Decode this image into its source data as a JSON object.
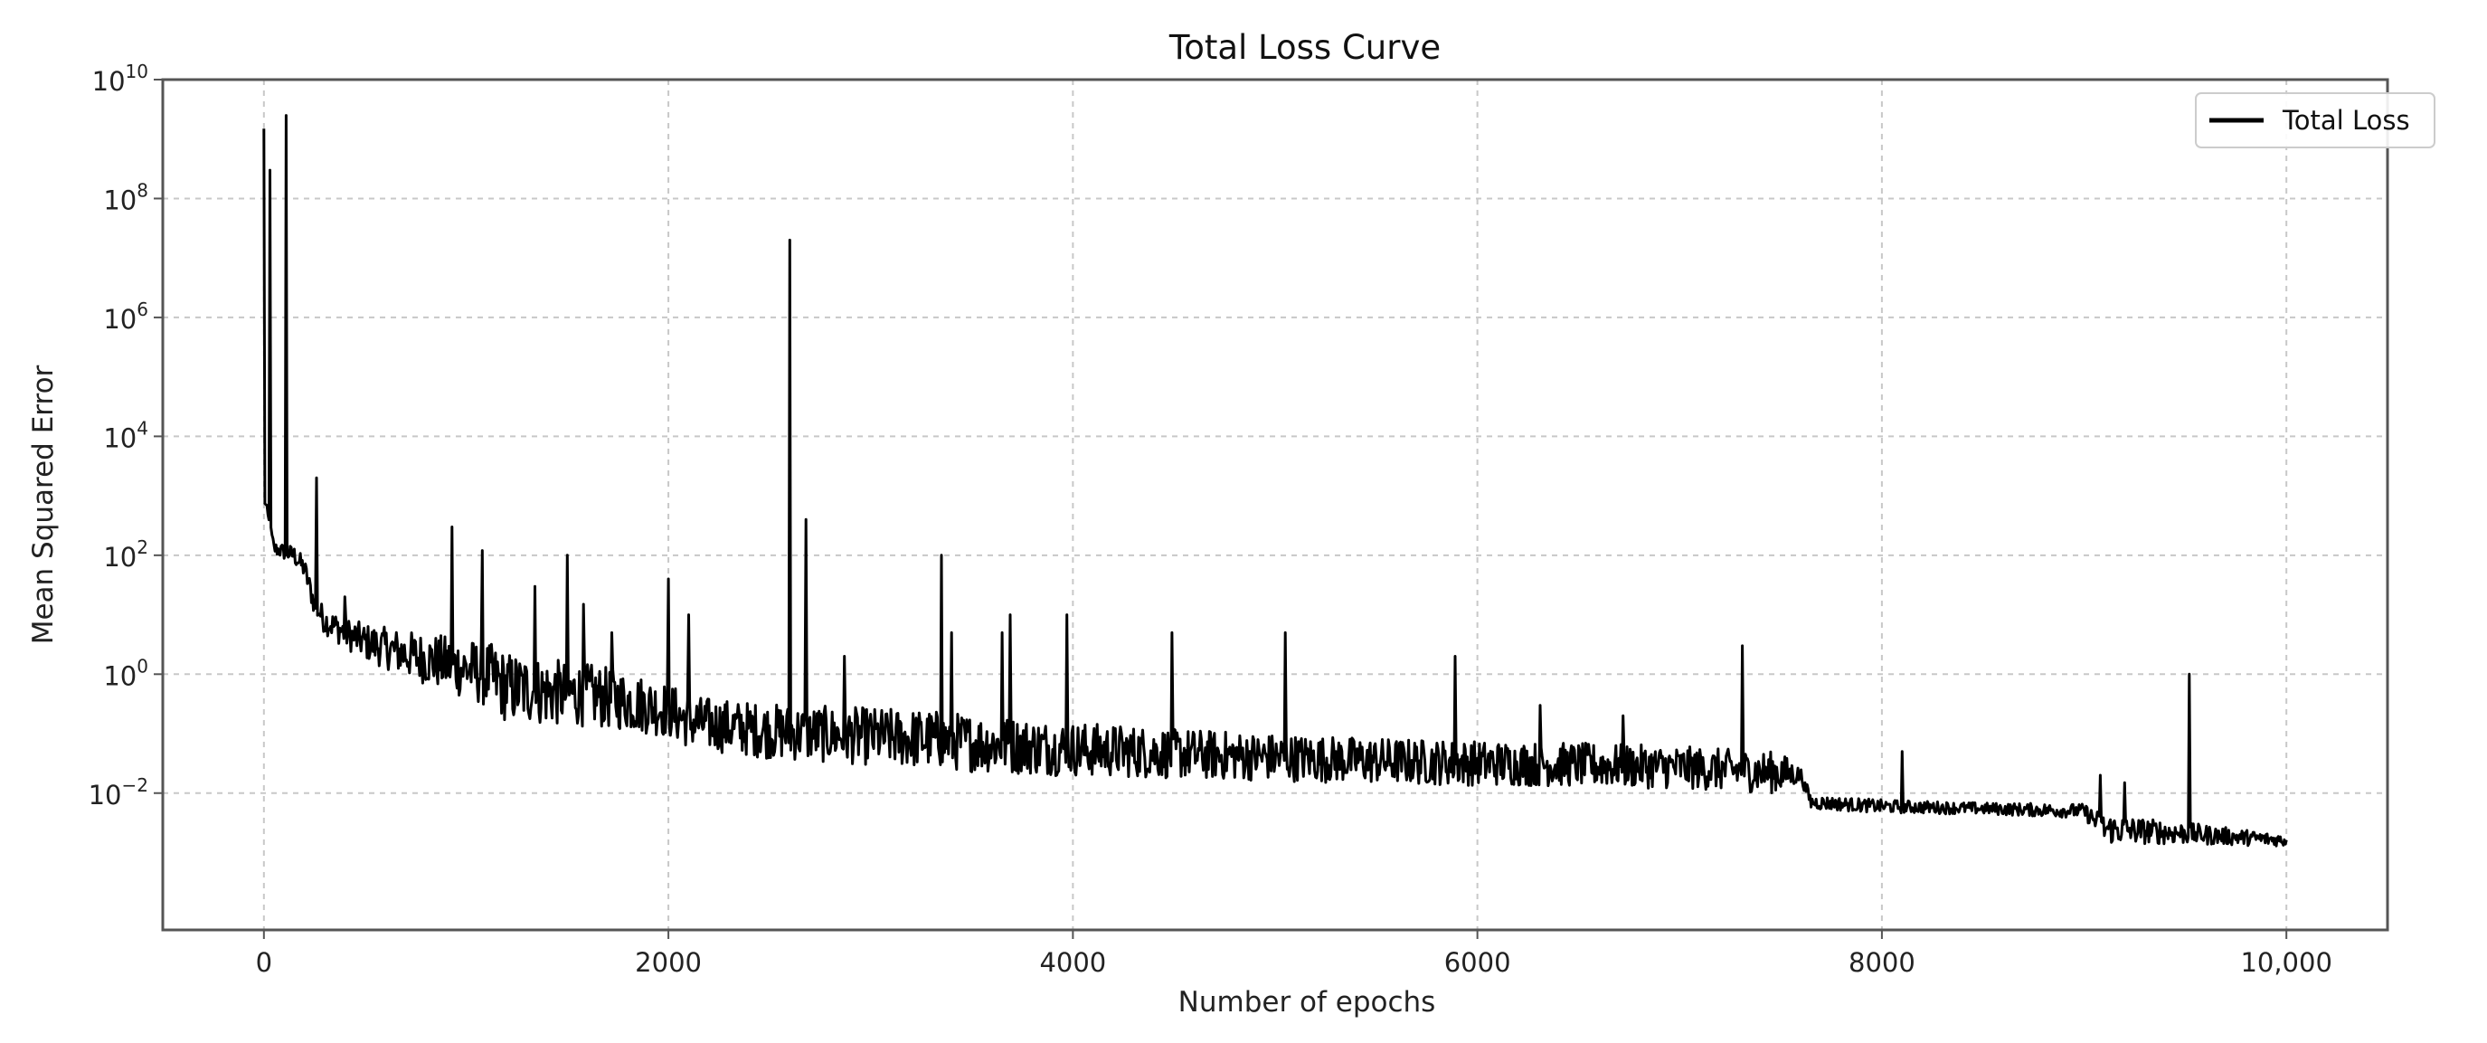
{
  "colors": {
    "line": "#000000",
    "grid": "#c8c8c8",
    "axes": "#555555",
    "background": "#ffffff"
  },
  "chart_data": {
    "type": "line",
    "title": "Total Loss Curve",
    "xlabel": "Number of epochs",
    "ylabel": "Mean Squared Error",
    "xlim": [
      -500,
      10500
    ],
    "ylim": [
      5e-05,
      10000000000
    ],
    "yscale": "log",
    "grid": true,
    "legend_position": "top-right",
    "xticks": [
      0,
      2000,
      4000,
      6000,
      8000,
      10000
    ],
    "xtick_labels": [
      "0",
      "2000",
      "4000",
      "6000",
      "8000",
      "10,000"
    ],
    "yticks": [
      {
        "value": 0.01,
        "base": "10",
        "exp": "−2"
      },
      {
        "value": 1,
        "base": "10",
        "exp": "0"
      },
      {
        "value": 100,
        "base": "10",
        "exp": "2"
      },
      {
        "value": 10000,
        "base": "10",
        "exp": "4"
      },
      {
        "value": 1000000,
        "base": "10",
        "exp": "6"
      },
      {
        "value": 100000000,
        "base": "10",
        "exp": "8"
      },
      {
        "value": 10000000000,
        "base": "10",
        "exp": "10"
      }
    ],
    "series": [
      {
        "name": "Total Loss",
        "color": "#000000",
        "trend": [
          [
            0,
            1000
          ],
          [
            50,
            130
          ],
          [
            150,
            100
          ],
          [
            200,
            60
          ],
          [
            250,
            15
          ],
          [
            300,
            8
          ],
          [
            400,
            5
          ],
          [
            500,
            3.5
          ],
          [
            700,
            2.2
          ],
          [
            900,
            1.5
          ],
          [
            1100,
            1.0
          ],
          [
            1200,
            0.6
          ],
          [
            1400,
            0.5
          ],
          [
            1600,
            0.45
          ],
          [
            1800,
            0.35
          ],
          [
            2000,
            0.25
          ],
          [
            2100,
            0.16
          ],
          [
            2300,
            0.13
          ],
          [
            2500,
            0.11
          ],
          [
            2700,
            0.1
          ],
          [
            3000,
            0.09
          ],
          [
            3300,
            0.08
          ],
          [
            3500,
            0.07
          ],
          [
            3800,
            0.06
          ],
          [
            4000,
            0.055
          ],
          [
            4300,
            0.05
          ],
          [
            4600,
            0.045
          ],
          [
            5000,
            0.04
          ],
          [
            5500,
            0.035
          ],
          [
            6000,
            0.032
          ],
          [
            6500,
            0.03
          ],
          [
            7000,
            0.027
          ],
          [
            7500,
            0.022
          ],
          [
            7600,
            0.02
          ],
          [
            7650,
            0.007
          ],
          [
            8000,
            0.006
          ],
          [
            8500,
            0.0055
          ],
          [
            9000,
            0.005
          ],
          [
            9100,
            0.0025
          ],
          [
            9500,
            0.0021
          ],
          [
            10000,
            0.0016
          ]
        ],
        "noise": [
          [
            0,
            0.1
          ],
          [
            1200,
            0.6
          ],
          [
            2100,
            0.45
          ],
          [
            3300,
            0.5
          ],
          [
            5000,
            0.4
          ],
          [
            7500,
            0.35
          ],
          [
            7600,
            0.12
          ],
          [
            8500,
            0.1
          ],
          [
            9000,
            0.12
          ],
          [
            9100,
            0.25
          ],
          [
            10000,
            0.1
          ]
        ],
        "spikes": [
          [
            0,
            1500000000
          ],
          [
            30,
            300000000
          ],
          [
            110,
            2500000000
          ],
          [
            260,
            2000
          ],
          [
            400,
            20
          ],
          [
            930,
            300
          ],
          [
            1080,
            120
          ],
          [
            1340,
            30
          ],
          [
            1500,
            100
          ],
          [
            1580,
            15
          ],
          [
            1720,
            5
          ],
          [
            2000,
            40
          ],
          [
            2100,
            10
          ],
          [
            2600,
            20000000
          ],
          [
            2680,
            400
          ],
          [
            2870,
            2
          ],
          [
            3350,
            100
          ],
          [
            3400,
            5
          ],
          [
            3650,
            5
          ],
          [
            3690,
            10
          ],
          [
            3970,
            10
          ],
          [
            4490,
            5
          ],
          [
            5050,
            5
          ],
          [
            5890,
            2
          ],
          [
            6310,
            0.3
          ],
          [
            6720,
            0.2
          ],
          [
            7310,
            3
          ],
          [
            7620,
            0.015
          ],
          [
            8100,
            0.05
          ],
          [
            9080,
            0.02
          ],
          [
            9200,
            0.015
          ],
          [
            9520,
            1
          ]
        ]
      }
    ]
  }
}
